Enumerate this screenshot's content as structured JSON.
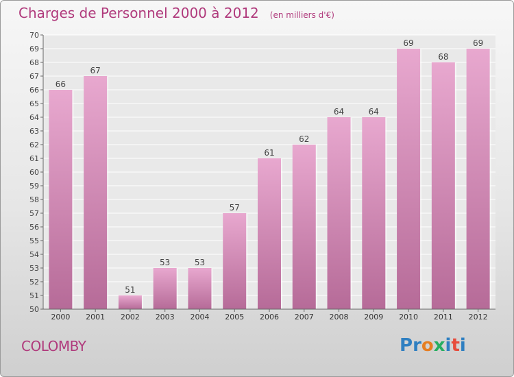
{
  "header": {
    "title": "Charges de Personnel 2000 à 2012",
    "unit": "(en milliers d'€)"
  },
  "footer": {
    "place": "COLOMBY",
    "logo_letters": [
      "P",
      "r",
      "o",
      "x",
      "i",
      "t",
      "i"
    ]
  },
  "colors": {
    "accent": "#b03a7c",
    "bar_top": "#e8a8cf",
    "bar_bottom": "#b66b98",
    "logo": [
      "#2f7fc1",
      "#2f7fc1",
      "#e67e22",
      "#27ae60",
      "#2f7fc1",
      "#e74c3c",
      "#2f7fc1"
    ]
  },
  "chart_data": {
    "type": "bar",
    "title": "Charges de Personnel 2000 à 2012",
    "subtitle": "(en milliers d'€)",
    "categories": [
      "2000",
      "2001",
      "2002",
      "2003",
      "2004",
      "2005",
      "2006",
      "2007",
      "2008",
      "2009",
      "2010",
      "2011",
      "2012"
    ],
    "values": [
      66,
      67,
      51,
      53,
      53,
      57,
      61,
      62,
      64,
      64,
      69,
      68,
      69
    ],
    "ylim": [
      50,
      70
    ],
    "yticks": [
      50,
      51,
      52,
      53,
      54,
      55,
      56,
      57,
      58,
      59,
      60,
      61,
      62,
      63,
      64,
      65,
      66,
      67,
      68,
      69,
      70
    ],
    "grid": true,
    "legend": "none",
    "xlabel": "",
    "ylabel": ""
  }
}
